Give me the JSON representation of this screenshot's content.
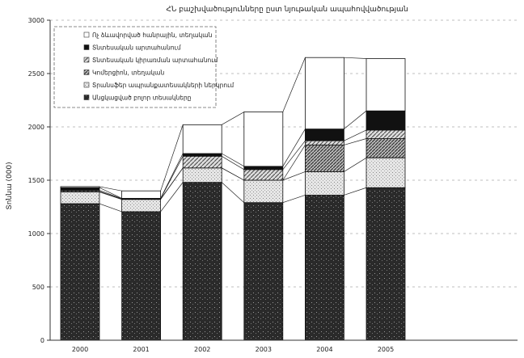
{
  "chart_data": {
    "type": "bar",
    "stacked": true,
    "title": "ՀՆ բաշխվածությունները ըստ նյութական ապահովվածության",
    "xlabel": "",
    "ylabel": "Տոննա (000)",
    "ylim": [
      0,
      3000
    ],
    "yticks": [
      0,
      500,
      1000,
      1500,
      2000,
      2500,
      3000
    ],
    "grid": true,
    "legend_position": "top-left",
    "categories": [
      "2000",
      "2001",
      "2002",
      "2003",
      "2004",
      "2005"
    ],
    "series": [
      {
        "name": "Անցկացված բոլոր տեսակները",
        "fill": "dark-speckle",
        "values": [
          1280,
          1205,
          1480,
          1290,
          1360,
          1430
        ]
      },
      {
        "name": "Տրանսֆեր ապրանքատեսակների ներկրում",
        "fill": "light-speckle",
        "values": [
          110,
          115,
          135,
          210,
          220,
          280
        ]
      },
      {
        "name": "Կոմերցիոն, տեղական",
        "fill": "dense-hatch",
        "values": [
          5,
          3,
          0,
          0,
          250,
          180
        ]
      },
      {
        "name": "Տնտեսական կիրառման արտահանում",
        "fill": "hatch",
        "values": [
          10,
          4,
          110,
          100,
          40,
          80
        ]
      },
      {
        "name": "Տնտեսական արտահանում",
        "fill": "black",
        "values": [
          25,
          3,
          25,
          30,
          110,
          180
        ]
      },
      {
        "name": "Ոչ ձևավորված հանրային, տեղական",
        "fill": "white",
        "values": [
          10,
          70,
          270,
          510,
          670,
          490
        ]
      }
    ]
  }
}
